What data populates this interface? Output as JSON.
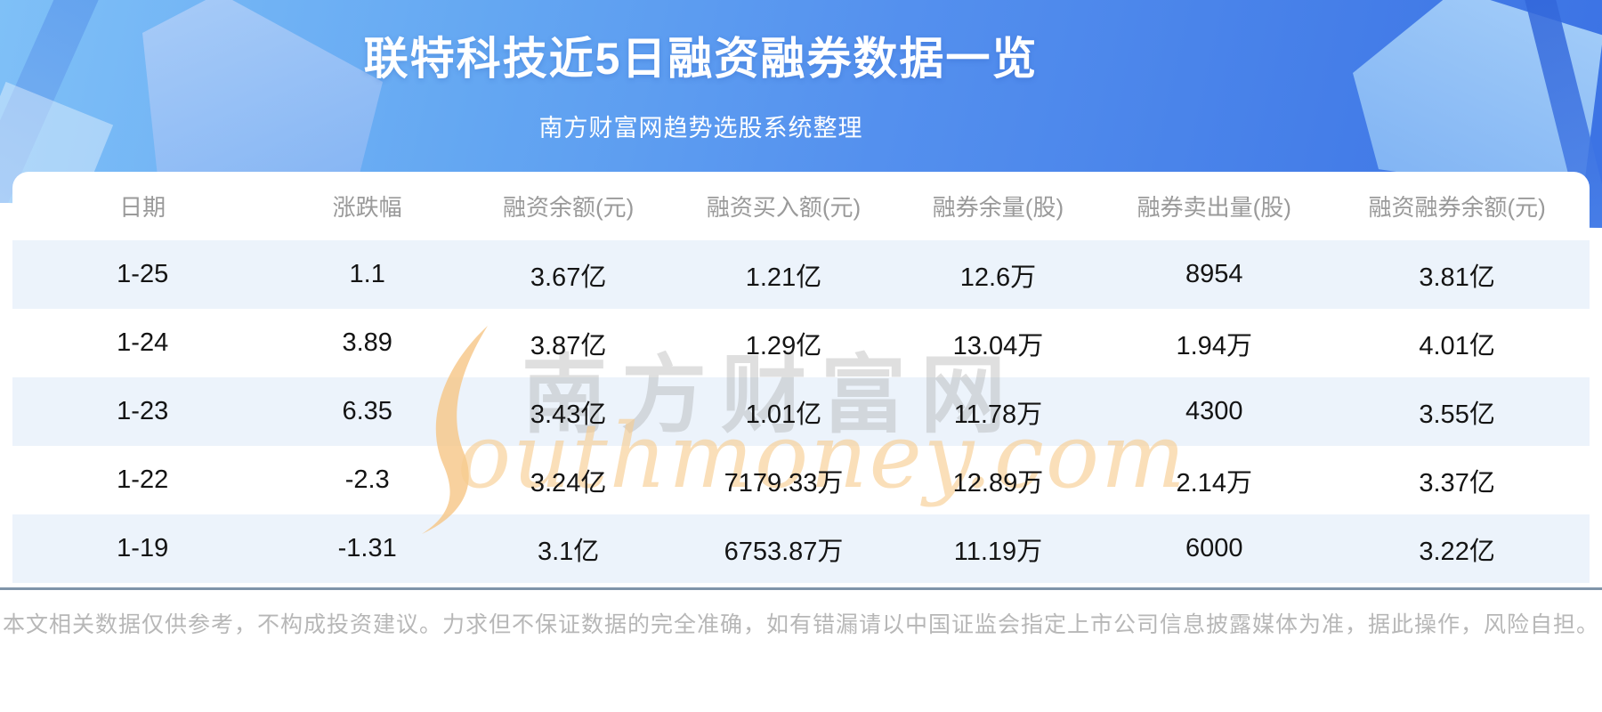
{
  "banner": {
    "title": "联特科技近5日融资融券数据一览",
    "subtitle": "南方财富网趋势选股系统整理"
  },
  "chart_data": {
    "type": "table",
    "title": "联特科技近5日融资融券数据一览",
    "subtitle": "南方财富网趋势选股系统整理",
    "columns": [
      "日期",
      "涨跌幅",
      "融资余额(元)",
      "融资买入额(元)",
      "融券余量(股)",
      "融券卖出量(股)",
      "融资融券余额(元)"
    ],
    "rows": [
      [
        "1-25",
        "1.1",
        "3.67亿",
        "1.21亿",
        "12.6万",
        "8954",
        "3.81亿"
      ],
      [
        "1-24",
        "3.89",
        "3.87亿",
        "1.29亿",
        "13.04万",
        "1.94万",
        "4.01亿"
      ],
      [
        "1-23",
        "6.35",
        "3.43亿",
        "1.01亿",
        "11.78万",
        "4300",
        "3.55亿"
      ],
      [
        "1-22",
        "-2.3",
        "3.24亿",
        "7179.33万",
        "12.89万",
        "2.14万",
        "3.37亿"
      ],
      [
        "1-19",
        "-1.31",
        "3.1亿",
        "6753.87万",
        "11.19万",
        "6000",
        "3.22亿"
      ]
    ]
  },
  "watermark": {
    "brand": "南方财富网",
    "domain": "outhmoney.com"
  },
  "footer": {
    "disclaimer": "本文相关数据仅供参考，不构成投资建议。力求但不保证数据的完全准确，如有错漏请以中国证监会指定上市公司信息披露媒体为准，据此操作，风险自担。"
  },
  "colors": {
    "banner_light": "#7fc0f7",
    "banner_dark": "#3b72e4",
    "row_stripe": "#ecf3fb",
    "header_text": "#9a9a9a",
    "divider": "#7f94a9",
    "watermark_orange": "#f7cb8e",
    "watermark_grey": "#9e9e9e"
  }
}
